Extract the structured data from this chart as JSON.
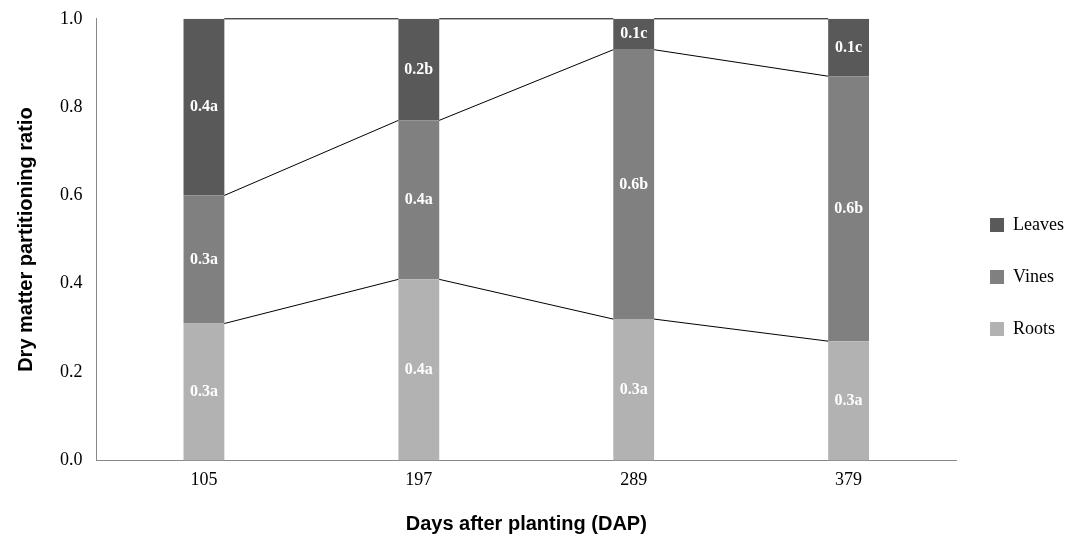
{
  "chart_data": {
    "type": "bar",
    "stacked": true,
    "xlabel": "Days after planting (DAP)",
    "ylabel": "Dry matter partitioning ratio",
    "categories": [
      "105",
      "197",
      "289",
      "379"
    ],
    "series": [
      {
        "name": "Roots",
        "color": "#b2b2b2",
        "values": [
          0.31,
          0.41,
          0.32,
          0.27
        ],
        "value_labels": [
          "0.3a",
          "0.4a",
          "0.3a",
          "0.3a"
        ]
      },
      {
        "name": "Vines",
        "color": "#808080",
        "values": [
          0.29,
          0.36,
          0.61,
          0.6
        ],
        "value_labels": [
          "0.3a",
          "0.4a",
          "0.6b",
          "0.6b"
        ]
      },
      {
        "name": "Leaves",
        "color": "#595959",
        "values": [
          0.4,
          0.23,
          0.07,
          0.13
        ],
        "value_labels": [
          "0.4a",
          "0.2b",
          "0.1c",
          "0.1c"
        ]
      }
    ],
    "ylim": [
      0,
      1
    ],
    "yticks": [
      {
        "value": 0,
        "label": "0.0"
      },
      {
        "value": 0.2,
        "label": "0.2"
      },
      {
        "value": 0.4,
        "label": "0.4"
      },
      {
        "value": 0.6,
        "label": "0.6"
      },
      {
        "value": 0.8,
        "label": "0.8"
      },
      {
        "value": 1,
        "label": "1.0"
      }
    ],
    "grid": false,
    "legend": "right"
  }
}
